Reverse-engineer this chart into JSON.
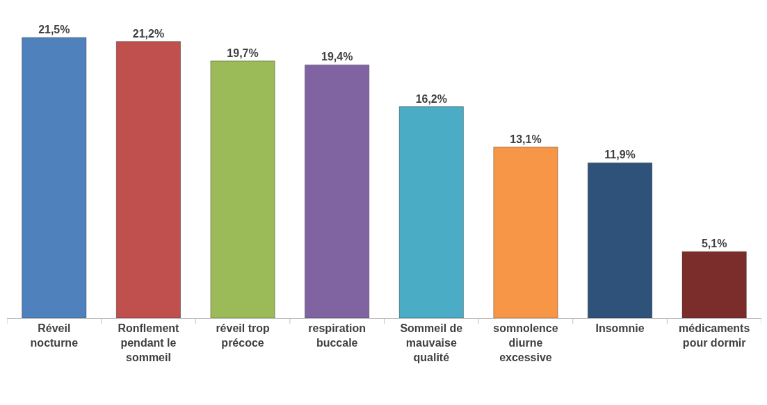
{
  "chart_data": {
    "type": "bar",
    "categories": [
      "Réveil nocturne",
      "Ronflement pendant le sommeil",
      "réveil trop précoce",
      "respiration buccale",
      "Sommeil de mauvaise qualité",
      "somnolence diurne excessive",
      "Insomnie",
      "médicaments pour dormir"
    ],
    "values": [
      21.5,
      21.2,
      19.7,
      19.4,
      16.2,
      13.1,
      11.9,
      5.1
    ],
    "value_labels": [
      "21,5%",
      "21,2%",
      "19,7%",
      "19,4%",
      "16,2%",
      "13,1%",
      "11,9%",
      "5,1%"
    ],
    "colors": [
      "#4f81bd",
      "#c0504d",
      "#9bbb59",
      "#8064a2",
      "#4bacc6",
      "#f79646",
      "#2f527a",
      "#7a2d2b"
    ]
  }
}
